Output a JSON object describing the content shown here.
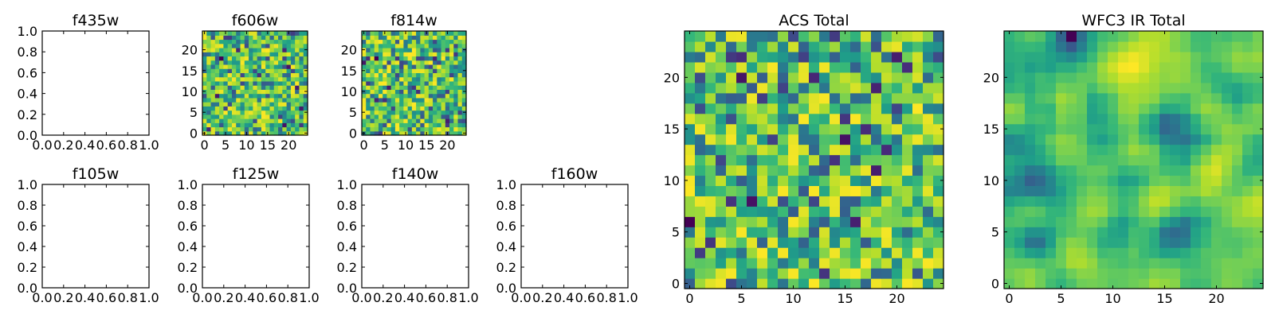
{
  "chart_data": [
    {
      "type": "heatmap",
      "title": "f435w",
      "xlim": [
        0,
        1
      ],
      "ylim": [
        0,
        1
      ],
      "xticks": [
        "0.0",
        "0.2",
        "0.4",
        "0.6",
        "0.8",
        "1.0"
      ],
      "yticks": [
        "0.0",
        "0.2",
        "0.4",
        "0.6",
        "0.8",
        "1.0"
      ],
      "grid": false,
      "values": []
    },
    {
      "type": "heatmap",
      "title": "f606w",
      "xlim": [
        -0.5,
        24.5
      ],
      "ylim": [
        -0.5,
        24.5
      ],
      "xticks": [
        "0",
        "5",
        "10",
        "15",
        "20"
      ],
      "yticks": [
        "0",
        "5",
        "10",
        "15",
        "20"
      ],
      "grid": false,
      "colormap": "viridis",
      "size": 25,
      "smoothing": 0,
      "seed": 606
    },
    {
      "type": "heatmap",
      "title": "f814w",
      "xlim": [
        -0.5,
        24.5
      ],
      "ylim": [
        -0.5,
        24.5
      ],
      "xticks": [
        "0",
        "5",
        "10",
        "15",
        "20"
      ],
      "yticks": [
        "0",
        "5",
        "10",
        "15",
        "20"
      ],
      "grid": false,
      "colormap": "viridis",
      "size": 25,
      "smoothing": 0,
      "seed": 814
    },
    {
      "type": "heatmap",
      "title": "ACS Total",
      "xlim": [
        -0.5,
        24.5
      ],
      "ylim": [
        -0.5,
        24.5
      ],
      "xticks": [
        "0",
        "5",
        "10",
        "15",
        "20"
      ],
      "yticks": [
        "0",
        "5",
        "10",
        "15",
        "20"
      ],
      "grid": false,
      "colormap": "viridis",
      "size": 25,
      "smoothing": 0,
      "seed": 1234
    },
    {
      "type": "heatmap",
      "title": "WFC3 IR Total",
      "xlim": [
        -0.5,
        24.5
      ],
      "ylim": [
        -0.5,
        24.5
      ],
      "xticks": [
        "0",
        "5",
        "10",
        "15",
        "20"
      ],
      "yticks": [
        "0",
        "5",
        "10",
        "15",
        "20"
      ],
      "grid": false,
      "colormap": "viridis",
      "size": 25,
      "smoothing": 2,
      "seed": 4321
    },
    {
      "type": "heatmap",
      "title": "f105w",
      "xlim": [
        0,
        1
      ],
      "ylim": [
        0,
        1
      ],
      "xticks": [
        "0.0",
        "0.2",
        "0.4",
        "0.6",
        "0.8",
        "1.0"
      ],
      "yticks": [
        "0.0",
        "0.2",
        "0.4",
        "0.6",
        "0.8",
        "1.0"
      ],
      "grid": false,
      "values": []
    },
    {
      "type": "heatmap",
      "title": "f125w",
      "xlim": [
        0,
        1
      ],
      "ylim": [
        0,
        1
      ],
      "xticks": [
        "0.0",
        "0.2",
        "0.4",
        "0.6",
        "0.8",
        "1.0"
      ],
      "yticks": [
        "0.0",
        "0.2",
        "0.4",
        "0.6",
        "0.8",
        "1.0"
      ],
      "grid": false,
      "values": []
    },
    {
      "type": "heatmap",
      "title": "f140w",
      "xlim": [
        0,
        1
      ],
      "ylim": [
        0,
        1
      ],
      "xticks": [
        "0.0",
        "0.2",
        "0.4",
        "0.6",
        "0.8",
        "1.0"
      ],
      "yticks": [
        "0.0",
        "0.2",
        "0.4",
        "0.6",
        "0.8",
        "1.0"
      ],
      "grid": false,
      "values": []
    },
    {
      "type": "heatmap",
      "title": "f160w",
      "xlim": [
        0,
        1
      ],
      "ylim": [
        0,
        1
      ],
      "xticks": [
        "0.0",
        "0.2",
        "0.4",
        "0.6",
        "0.8",
        "1.0"
      ],
      "yticks": [
        "0.0",
        "0.2",
        "0.4",
        "0.6",
        "0.8",
        "1.0"
      ],
      "grid": false,
      "values": []
    }
  ]
}
